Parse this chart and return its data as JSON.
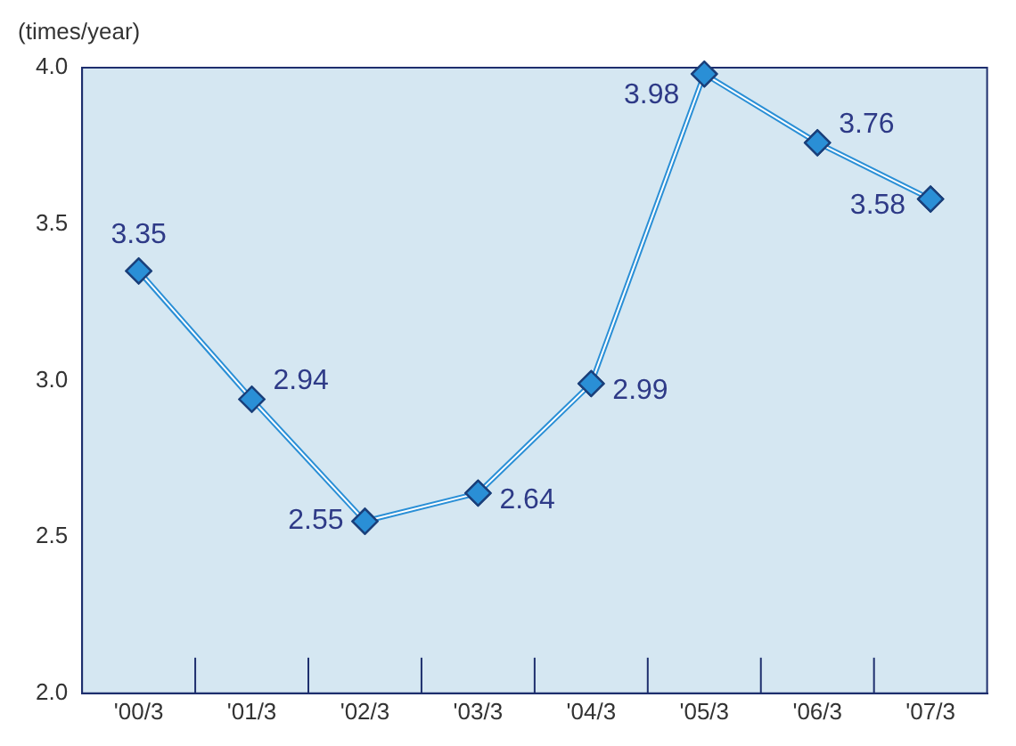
{
  "chart_data": {
    "type": "line",
    "ylabel": "(times/year)",
    "categories": [
      "'00/3",
      "'01/3",
      "'02/3",
      "'03/3",
      "'04/3",
      "'05/3",
      "'06/3",
      "'07/3"
    ],
    "series": [
      {
        "color": "#2a8fd6",
        "values": [
          3.35,
          2.94,
          2.55,
          2.64,
          2.99,
          3.98,
          3.76,
          3.58
        ]
      }
    ],
    "ylim": [
      2.0,
      4.0
    ],
    "yticks": [
      {
        "value": 2,
        "label": "2.0"
      },
      {
        "value": 2.5,
        "label": "2.5"
      },
      {
        "value": 3,
        "label": "3.0"
      },
      {
        "value": 3.5,
        "label": "3.5"
      },
      {
        "value": 4,
        "label": "4.0"
      }
    ],
    "grid": false,
    "legend": false,
    "marker": "diamond",
    "line_style": "solid",
    "data_labels": true
  }
}
